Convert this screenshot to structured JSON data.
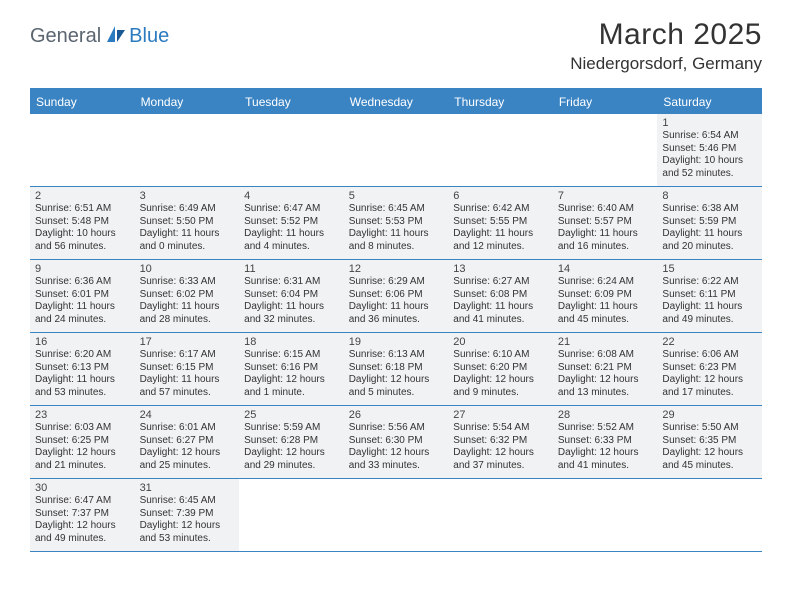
{
  "logo": {
    "text1": "General",
    "text2": "Blue"
  },
  "title": "March 2025",
  "location": "Niedergorsdorf, Germany",
  "colors": {
    "header_bg": "#3b84c4",
    "header_text": "#ffffff",
    "shade_bg": "#f1f2f3",
    "logo_gray": "#5a6570",
    "logo_blue": "#2b7bbf",
    "border": "#3b84c4"
  },
  "day_names": [
    "Sunday",
    "Monday",
    "Tuesday",
    "Wednesday",
    "Thursday",
    "Friday",
    "Saturday"
  ],
  "weeks": [
    [
      {
        "n": "",
        "sr": "",
        "ss": "",
        "dl": ""
      },
      {
        "n": "",
        "sr": "",
        "ss": "",
        "dl": ""
      },
      {
        "n": "",
        "sr": "",
        "ss": "",
        "dl": ""
      },
      {
        "n": "",
        "sr": "",
        "ss": "",
        "dl": ""
      },
      {
        "n": "",
        "sr": "",
        "ss": "",
        "dl": ""
      },
      {
        "n": "",
        "sr": "",
        "ss": "",
        "dl": ""
      },
      {
        "n": "1",
        "sr": "Sunrise: 6:54 AM",
        "ss": "Sunset: 5:46 PM",
        "dl": "Daylight: 10 hours and 52 minutes."
      }
    ],
    [
      {
        "n": "2",
        "sr": "Sunrise: 6:51 AM",
        "ss": "Sunset: 5:48 PM",
        "dl": "Daylight: 10 hours and 56 minutes."
      },
      {
        "n": "3",
        "sr": "Sunrise: 6:49 AM",
        "ss": "Sunset: 5:50 PM",
        "dl": "Daylight: 11 hours and 0 minutes."
      },
      {
        "n": "4",
        "sr": "Sunrise: 6:47 AM",
        "ss": "Sunset: 5:52 PM",
        "dl": "Daylight: 11 hours and 4 minutes."
      },
      {
        "n": "5",
        "sr": "Sunrise: 6:45 AM",
        "ss": "Sunset: 5:53 PM",
        "dl": "Daylight: 11 hours and 8 minutes."
      },
      {
        "n": "6",
        "sr": "Sunrise: 6:42 AM",
        "ss": "Sunset: 5:55 PM",
        "dl": "Daylight: 11 hours and 12 minutes."
      },
      {
        "n": "7",
        "sr": "Sunrise: 6:40 AM",
        "ss": "Sunset: 5:57 PM",
        "dl": "Daylight: 11 hours and 16 minutes."
      },
      {
        "n": "8",
        "sr": "Sunrise: 6:38 AM",
        "ss": "Sunset: 5:59 PM",
        "dl": "Daylight: 11 hours and 20 minutes."
      }
    ],
    [
      {
        "n": "9",
        "sr": "Sunrise: 6:36 AM",
        "ss": "Sunset: 6:01 PM",
        "dl": "Daylight: 11 hours and 24 minutes."
      },
      {
        "n": "10",
        "sr": "Sunrise: 6:33 AM",
        "ss": "Sunset: 6:02 PM",
        "dl": "Daylight: 11 hours and 28 minutes."
      },
      {
        "n": "11",
        "sr": "Sunrise: 6:31 AM",
        "ss": "Sunset: 6:04 PM",
        "dl": "Daylight: 11 hours and 32 minutes."
      },
      {
        "n": "12",
        "sr": "Sunrise: 6:29 AM",
        "ss": "Sunset: 6:06 PM",
        "dl": "Daylight: 11 hours and 36 minutes."
      },
      {
        "n": "13",
        "sr": "Sunrise: 6:27 AM",
        "ss": "Sunset: 6:08 PM",
        "dl": "Daylight: 11 hours and 41 minutes."
      },
      {
        "n": "14",
        "sr": "Sunrise: 6:24 AM",
        "ss": "Sunset: 6:09 PM",
        "dl": "Daylight: 11 hours and 45 minutes."
      },
      {
        "n": "15",
        "sr": "Sunrise: 6:22 AM",
        "ss": "Sunset: 6:11 PM",
        "dl": "Daylight: 11 hours and 49 minutes."
      }
    ],
    [
      {
        "n": "16",
        "sr": "Sunrise: 6:20 AM",
        "ss": "Sunset: 6:13 PM",
        "dl": "Daylight: 11 hours and 53 minutes."
      },
      {
        "n": "17",
        "sr": "Sunrise: 6:17 AM",
        "ss": "Sunset: 6:15 PM",
        "dl": "Daylight: 11 hours and 57 minutes."
      },
      {
        "n": "18",
        "sr": "Sunrise: 6:15 AM",
        "ss": "Sunset: 6:16 PM",
        "dl": "Daylight: 12 hours and 1 minute."
      },
      {
        "n": "19",
        "sr": "Sunrise: 6:13 AM",
        "ss": "Sunset: 6:18 PM",
        "dl": "Daylight: 12 hours and 5 minutes."
      },
      {
        "n": "20",
        "sr": "Sunrise: 6:10 AM",
        "ss": "Sunset: 6:20 PM",
        "dl": "Daylight: 12 hours and 9 minutes."
      },
      {
        "n": "21",
        "sr": "Sunrise: 6:08 AM",
        "ss": "Sunset: 6:21 PM",
        "dl": "Daylight: 12 hours and 13 minutes."
      },
      {
        "n": "22",
        "sr": "Sunrise: 6:06 AM",
        "ss": "Sunset: 6:23 PM",
        "dl": "Daylight: 12 hours and 17 minutes."
      }
    ],
    [
      {
        "n": "23",
        "sr": "Sunrise: 6:03 AM",
        "ss": "Sunset: 6:25 PM",
        "dl": "Daylight: 12 hours and 21 minutes."
      },
      {
        "n": "24",
        "sr": "Sunrise: 6:01 AM",
        "ss": "Sunset: 6:27 PM",
        "dl": "Daylight: 12 hours and 25 minutes."
      },
      {
        "n": "25",
        "sr": "Sunrise: 5:59 AM",
        "ss": "Sunset: 6:28 PM",
        "dl": "Daylight: 12 hours and 29 minutes."
      },
      {
        "n": "26",
        "sr": "Sunrise: 5:56 AM",
        "ss": "Sunset: 6:30 PM",
        "dl": "Daylight: 12 hours and 33 minutes."
      },
      {
        "n": "27",
        "sr": "Sunrise: 5:54 AM",
        "ss": "Sunset: 6:32 PM",
        "dl": "Daylight: 12 hours and 37 minutes."
      },
      {
        "n": "28",
        "sr": "Sunrise: 5:52 AM",
        "ss": "Sunset: 6:33 PM",
        "dl": "Daylight: 12 hours and 41 minutes."
      },
      {
        "n": "29",
        "sr": "Sunrise: 5:50 AM",
        "ss": "Sunset: 6:35 PM",
        "dl": "Daylight: 12 hours and 45 minutes."
      }
    ],
    [
      {
        "n": "30",
        "sr": "Sunrise: 6:47 AM",
        "ss": "Sunset: 7:37 PM",
        "dl": "Daylight: 12 hours and 49 minutes."
      },
      {
        "n": "31",
        "sr": "Sunrise: 6:45 AM",
        "ss": "Sunset: 7:39 PM",
        "dl": "Daylight: 12 hours and 53 minutes."
      },
      {
        "n": "",
        "sr": "",
        "ss": "",
        "dl": ""
      },
      {
        "n": "",
        "sr": "",
        "ss": "",
        "dl": ""
      },
      {
        "n": "",
        "sr": "",
        "ss": "",
        "dl": ""
      },
      {
        "n": "",
        "sr": "",
        "ss": "",
        "dl": ""
      },
      {
        "n": "",
        "sr": "",
        "ss": "",
        "dl": ""
      }
    ]
  ]
}
